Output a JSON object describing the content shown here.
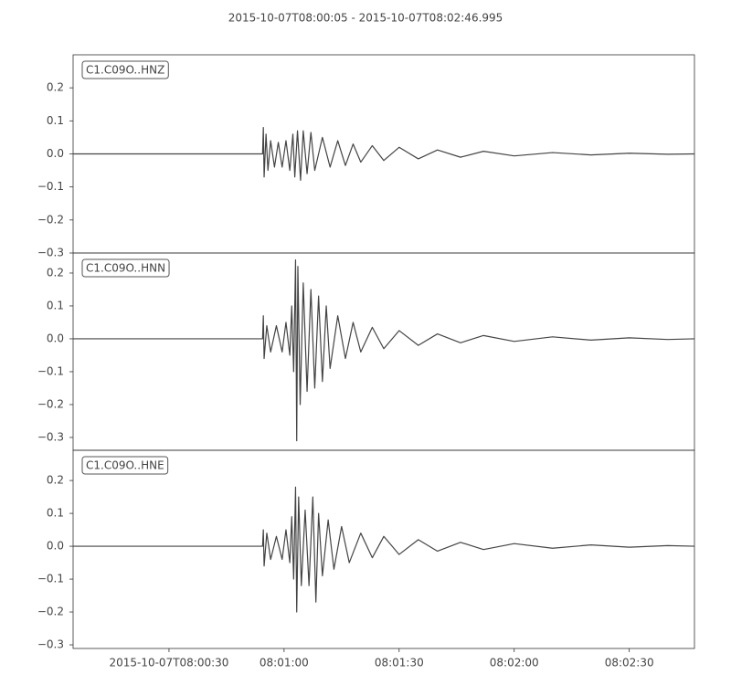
{
  "title": "2015-10-07T08:00:05  -  2015-10-07T08:02:46.995",
  "chart_data": [
    {
      "type": "line",
      "label": "C1.C09O..HNZ",
      "color": "#444444",
      "xlim": [
        "08:00:05",
        "08:02:46.995"
      ],
      "ylim": [
        -0.3,
        0.3
      ],
      "yticks": [
        {
          "value": -0.3,
          "label": "−0.3"
        },
        {
          "value": -0.2,
          "label": "−0.2"
        },
        {
          "value": -0.1,
          "label": "−0.1"
        },
        {
          "value": 0,
          "label": "0.0"
        },
        0.1,
        0.2
      ],
      "x": [
        "08:00:05",
        "08:00:54.4",
        "08:00:54.6",
        "08:00:54.8",
        "08:00:55.3",
        "08:00:55.8",
        "08:00:56.5",
        "08:00:57.5",
        "08:00:58.5",
        "08:00:59.5",
        "08:01:00.5",
        "08:01:01.5",
        "08:01:02.3",
        "08:01:02.8",
        "08:01:03.5",
        "08:01:04.3",
        "08:01:05",
        "08:01:06",
        "08:01:07",
        "08:01:08",
        "08:01:10",
        "08:01:12",
        "08:01:14",
        "08:01:16",
        "08:01:18",
        "08:01:20",
        "08:01:23",
        "08:01:26",
        "08:01:30",
        "08:01:35",
        "08:01:40",
        "08:01:46",
        "08:01:52",
        "08:02:00",
        "08:02:10",
        "08:02:20",
        "08:02:30",
        "08:02:40",
        "08:02:46.995"
      ],
      "values": [
        0,
        0,
        0.08,
        -0.07,
        0.06,
        -0.05,
        0.04,
        -0.04,
        0.035,
        -0.04,
        0.04,
        -0.05,
        0.06,
        -0.07,
        0.07,
        -0.08,
        0.07,
        -0.06,
        0.065,
        -0.05,
        0.05,
        -0.04,
        0.04,
        -0.035,
        0.03,
        -0.025,
        0.025,
        -0.02,
        0.02,
        -0.015,
        0.012,
        -0.01,
        0.008,
        -0.006,
        0.004,
        -0.003,
        0.002,
        -0.001,
        0
      ]
    },
    {
      "type": "line",
      "label": "C1.C09O..HNN",
      "color": "#444444",
      "xlim": [
        "08:00:05",
        "08:02:46.995"
      ],
      "ylim": [
        -0.339,
        0.261
      ],
      "yticks": [
        {
          "value": -0.3,
          "label": "−0.3"
        },
        {
          "value": -0.2,
          "label": "−0.2"
        },
        {
          "value": -0.1,
          "label": "−0.1"
        },
        {
          "value": 0,
          "label": "0.0"
        },
        0.1,
        0.2
      ],
      "x": [
        "08:00:05",
        "08:00:54.4",
        "08:00:54.6",
        "08:00:54.8",
        "08:00:55.5",
        "08:00:56.5",
        "08:00:58",
        "08:00:59.5",
        "08:01:00.5",
        "08:01:01.5",
        "08:01:02",
        "08:01:02.5",
        "08:01:03",
        "08:01:03.3",
        "08:01:03.6",
        "08:01:04.2",
        "08:01:05",
        "08:01:06",
        "08:01:07",
        "08:01:08",
        "08:01:09",
        "08:01:10",
        "08:01:11",
        "08:01:12",
        "08:01:14",
        "08:01:16",
        "08:01:18",
        "08:01:20",
        "08:01:23",
        "08:01:26",
        "08:01:30",
        "08:01:35",
        "08:01:40",
        "08:01:46",
        "08:01:52",
        "08:02:00",
        "08:02:10",
        "08:02:20",
        "08:02:30",
        "08:02:40",
        "08:02:46.995"
      ],
      "values": [
        0,
        0,
        0.07,
        -0.06,
        0.04,
        -0.04,
        0.04,
        -0.04,
        0.05,
        -0.05,
        0.1,
        -0.1,
        0.24,
        -0.31,
        0.22,
        -0.2,
        0.17,
        -0.16,
        0.15,
        -0.15,
        0.13,
        -0.13,
        0.1,
        -0.09,
        0.07,
        -0.06,
        0.05,
        -0.04,
        0.035,
        -0.03,
        0.025,
        -0.02,
        0.015,
        -0.012,
        0.01,
        -0.008,
        0.006,
        -0.004,
        0.003,
        -0.002,
        0
      ]
    },
    {
      "type": "line",
      "label": "C1.C09O..HNE",
      "color": "#444444",
      "xlim": [
        "08:00:05",
        "08:02:46.995"
      ],
      "ylim": [
        -0.311,
        0.292
      ],
      "yticks": [
        {
          "value": -0.3,
          "label": "−0.3"
        },
        {
          "value": -0.2,
          "label": "−0.2"
        },
        {
          "value": -0.1,
          "label": "−0.1"
        },
        {
          "value": 0,
          "label": "0.0"
        },
        0.1,
        0.2
      ],
      "xticks": [
        {
          "value": "08:00:30",
          "label": "2015-10-07T08:00:30"
        },
        {
          "value": "08:01:00",
          "label": "08:01:00"
        },
        {
          "value": "08:01:30",
          "label": "08:01:30"
        },
        {
          "value": "08:02:00",
          "label": "08:02:00"
        },
        {
          "value": "08:02:30",
          "label": "08:02:30"
        }
      ],
      "x": [
        "08:00:05",
        "08:00:54.4",
        "08:00:54.6",
        "08:00:54.8",
        "08:00:55.5",
        "08:00:56.5",
        "08:00:58",
        "08:00:59.5",
        "08:01:00.5",
        "08:01:01.5",
        "08:01:02",
        "08:01:02.5",
        "08:01:03",
        "08:01:03.3",
        "08:01:03.8",
        "08:01:04.5",
        "08:01:05.5",
        "08:01:06.5",
        "08:01:07.5",
        "08:01:08.3",
        "08:01:09",
        "08:01:10",
        "08:01:11.5",
        "08:01:13",
        "08:01:15",
        "08:01:17",
        "08:01:20",
        "08:01:23",
        "08:01:26",
        "08:01:30",
        "08:01:35",
        "08:01:40",
        "08:01:46",
        "08:01:52",
        "08:02:00",
        "08:02:10",
        "08:02:20",
        "08:02:30",
        "08:02:40",
        "08:02:46.995"
      ],
      "values": [
        0,
        0,
        0.05,
        -0.06,
        0.04,
        -0.04,
        0.03,
        -0.04,
        0.05,
        -0.05,
        0.09,
        -0.1,
        0.18,
        -0.2,
        0.15,
        -0.12,
        0.11,
        -0.12,
        0.15,
        -0.17,
        0.1,
        -0.09,
        0.08,
        -0.07,
        0.06,
        -0.05,
        0.04,
        -0.035,
        0.03,
        -0.025,
        0.02,
        -0.015,
        0.012,
        -0.01,
        0.008,
        -0.006,
        0.004,
        -0.003,
        0.002,
        0
      ]
    }
  ]
}
